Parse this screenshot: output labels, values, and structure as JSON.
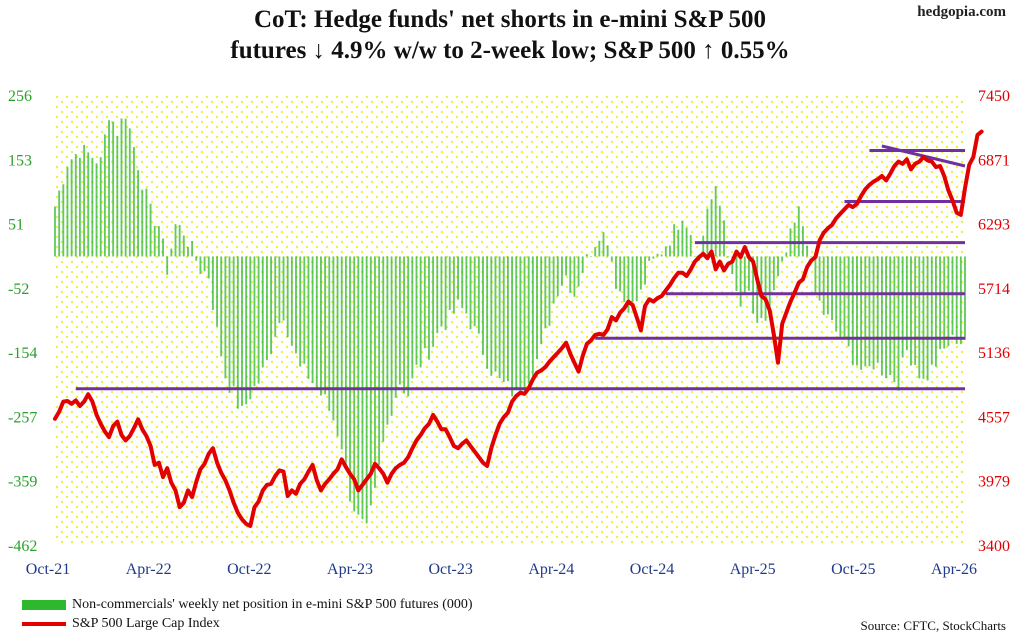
{
  "header": {
    "title_line1": "CoT: Hedge funds' net shorts in e-mini S&P 500",
    "title_line2": "futures ↓ 4.9% w/w to 2-week low; S&P 500 ↑ 0.55%",
    "watermark": "hedgopia.com"
  },
  "footer": {
    "source": "Source: CFTC, StockCharts"
  },
  "chart_data": {
    "type": "bar",
    "title": "CoT: Hedge funds' net shorts in e-mini S&P 500 futures ↓ 4.9% w/w to 2-week low; S&P 500 ↑ 0.55%",
    "x_ticks": [
      "Oct-21",
      "Apr-22",
      "Oct-22",
      "Apr-23",
      "Oct-23",
      "Apr-24",
      "Oct-24",
      "Apr-25",
      "Oct-25",
      "Apr-26"
    ],
    "left_axis": {
      "ticks": [
        "256",
        "153",
        "51",
        "-52",
        "-154",
        "-257",
        "-359",
        "-462"
      ],
      "ylim": [
        -462,
        256
      ],
      "color": "#2aa12a"
    },
    "right_axis": {
      "ticks": [
        "7450",
        "6871",
        "6293",
        "5714",
        "5136",
        "4557",
        "3979",
        "3400"
      ],
      "ylim": [
        3400,
        7450
      ],
      "color": "#e30000"
    },
    "grid": "dotted yellow",
    "legend_placement": "bottom-left",
    "series": [
      {
        "name": "Non-commercials' weekly net position in e-mini S&P 500 futures (000)",
        "type": "bar",
        "axis": "left",
        "color": "#2db82d",
        "anchors": [
          [
            0,
            80
          ],
          [
            3,
            150
          ],
          [
            6,
            170
          ],
          [
            9,
            160
          ],
          [
            11,
            150
          ],
          [
            13,
            230
          ],
          [
            15,
            200
          ],
          [
            17,
            230
          ],
          [
            19,
            175
          ],
          [
            21,
            120
          ],
          [
            23,
            70
          ],
          [
            25,
            50
          ],
          [
            27,
            -20
          ],
          [
            29,
            50
          ],
          [
            31,
            40
          ],
          [
            33,
            10
          ],
          [
            35,
            -20
          ],
          [
            37,
            -30
          ],
          [
            39,
            -120
          ],
          [
            41,
            -190
          ],
          [
            43,
            -220
          ],
          [
            45,
            -250
          ],
          [
            47,
            -220
          ],
          [
            49,
            -200
          ],
          [
            51,
            -170
          ],
          [
            53,
            -120
          ],
          [
            55,
            -90
          ],
          [
            57,
            -140
          ],
          [
            59,
            -180
          ],
          [
            61,
            -190
          ],
          [
            63,
            -210
          ],
          [
            65,
            -230
          ],
          [
            67,
            -260
          ],
          [
            69,
            -300
          ],
          [
            71,
            -380
          ],
          [
            73,
            -420
          ],
          [
            75,
            -440
          ],
          [
            77,
            -380
          ],
          [
            79,
            -300
          ],
          [
            81,
            -240
          ],
          [
            83,
            -200
          ],
          [
            85,
            -220
          ],
          [
            87,
            -180
          ],
          [
            89,
            -160
          ],
          [
            91,
            -140
          ],
          [
            93,
            -110
          ],
          [
            95,
            -100
          ],
          [
            97,
            -80
          ],
          [
            99,
            -90
          ],
          [
            101,
            -120
          ],
          [
            103,
            -150
          ],
          [
            105,
            -180
          ],
          [
            107,
            -200
          ],
          [
            109,
            -210
          ],
          [
            111,
            -220
          ],
          [
            113,
            -200
          ],
          [
            115,
            -180
          ],
          [
            117,
            -150
          ],
          [
            119,
            -100
          ],
          [
            121,
            -50
          ],
          [
            123,
            -30
          ],
          [
            125,
            -60
          ],
          [
            127,
            -20
          ],
          [
            129,
            10
          ],
          [
            131,
            40
          ],
          [
            133,
            30
          ],
          [
            135,
            -40
          ],
          [
            137,
            -70
          ],
          [
            139,
            -80
          ],
          [
            141,
            -60
          ],
          [
            143,
            -20
          ],
          [
            145,
            0
          ],
          [
            147,
            20
          ],
          [
            149,
            40
          ],
          [
            151,
            70
          ],
          [
            153,
            40
          ],
          [
            155,
            -10
          ],
          [
            157,
            80
          ],
          [
            159,
            100
          ],
          [
            161,
            60
          ],
          [
            163,
            -40
          ],
          [
            165,
            -80
          ],
          [
            167,
            -60
          ],
          [
            169,
            -120
          ],
          [
            171,
            -100
          ],
          [
            173,
            -60
          ],
          [
            175,
            -20
          ],
          [
            177,
            30
          ],
          [
            179,
            70
          ],
          [
            181,
            30
          ],
          [
            183,
            -60
          ],
          [
            185,
            -90
          ],
          [
            187,
            -110
          ],
          [
            189,
            -130
          ],
          [
            191,
            -150
          ],
          [
            193,
            -170
          ],
          [
            195,
            -190
          ],
          [
            197,
            -170
          ],
          [
            199,
            -180
          ],
          [
            201,
            -190
          ],
          [
            203,
            -200
          ],
          [
            205,
            -150
          ],
          [
            207,
            -170
          ],
          [
            209,
            -200
          ],
          [
            211,
            -180
          ],
          [
            213,
            -160
          ],
          [
            215,
            -140
          ],
          [
            217,
            -130
          ],
          [
            219,
            -120
          ]
        ],
        "last_values": [
          -140,
          -133
        ]
      },
      {
        "name": "S&P 500 Large Cap Index",
        "type": "line",
        "axis": "right",
        "color": "#e30000",
        "values": [
          4545,
          4610,
          4700,
          4705,
          4680,
          4710,
          4660,
          4700,
          4766,
          4700,
          4580,
          4500,
          4430,
          4380,
          4480,
          4520,
          4400,
          4350,
          4390,
          4460,
          4540,
          4450,
          4390,
          4300,
          4130,
          4150,
          4020,
          4100,
          3970,
          3900,
          3750,
          3790,
          3900,
          3840,
          3980,
          4090,
          4140,
          4230,
          4280,
          4150,
          4060,
          3990,
          3900,
          3790,
          3700,
          3640,
          3600,
          3580,
          3750,
          3800,
          3900,
          3950,
          3960,
          4030,
          4080,
          4070,
          3850,
          3900,
          3870,
          3960,
          4000,
          4070,
          4130,
          3990,
          3900,
          3960,
          4000,
          4050,
          4090,
          4180,
          4110,
          4050,
          4000,
          3900,
          3950,
          4000,
          4050,
          4140,
          4100,
          4050,
          3970,
          4050,
          4100,
          4130,
          4150,
          4200,
          4280,
          4350,
          4400,
          4460,
          4500,
          4580,
          4520,
          4450,
          4450,
          4380,
          4300,
          4280,
          4320,
          4350,
          4300,
          4250,
          4200,
          4150,
          4120,
          4280,
          4400,
          4500,
          4560,
          4600,
          4700,
          4750,
          4780,
          4770,
          4820,
          4900,
          4960,
          4980,
          5010,
          5060,
          5100,
          5140,
          5180,
          5230,
          5130,
          5050,
          4970,
          5110,
          5220,
          5250,
          5300,
          5310,
          5300,
          5350,
          5460,
          5430,
          5500,
          5540,
          5600,
          5570,
          5460,
          5340,
          5560,
          5620,
          5600,
          5630,
          5650,
          5700,
          5750,
          5810,
          5860,
          5860,
          5830,
          5890,
          5960,
          6000,
          6030,
          5990,
          6050,
          5890,
          5960,
          5880,
          5940,
          5960,
          6050,
          6000,
          6090,
          6000,
          5960,
          5800,
          5650,
          5620,
          5520,
          5300,
          5050,
          5400,
          5500,
          5600,
          5680,
          5770,
          5800,
          5910,
          5970,
          6000,
          6150,
          6220,
          6260,
          6290,
          6350,
          6390,
          6430,
          6470,
          6450,
          6480,
          6550,
          6610,
          6650,
          6680,
          6700,
          6730,
          6690,
          6750,
          6820,
          6860,
          6840,
          6880,
          6790,
          6840,
          6860,
          6900,
          6870,
          6860,
          6810,
          6820,
          6730,
          6600,
          6510,
          6400,
          6380,
          6620,
          6830,
          6900,
          7100,
          7130
        ]
      }
    ],
    "annotations": [
      {
        "type": "hline",
        "value": 4815,
        "from": 5,
        "to": 219,
        "color": "#7030a0"
      },
      {
        "type": "hline",
        "value": 5270,
        "from": 130,
        "to": 219,
        "color": "#7030a0"
      },
      {
        "type": "hline",
        "value": 5670,
        "from": 147,
        "to": 219,
        "color": "#7030a0"
      },
      {
        "type": "hline",
        "value": 6130,
        "from": 154,
        "to": 219,
        "color": "#7030a0"
      },
      {
        "type": "hline",
        "value": 6500,
        "from": 190,
        "to": 219,
        "color": "#7030a0"
      },
      {
        "type": "hline",
        "value": 6960,
        "from": 196,
        "to": 219,
        "color": "#7030a0"
      },
      {
        "type": "trendline",
        "from": [
          199,
          7000
        ],
        "to": [
          219,
          6820
        ],
        "color": "#7030a0"
      }
    ]
  }
}
